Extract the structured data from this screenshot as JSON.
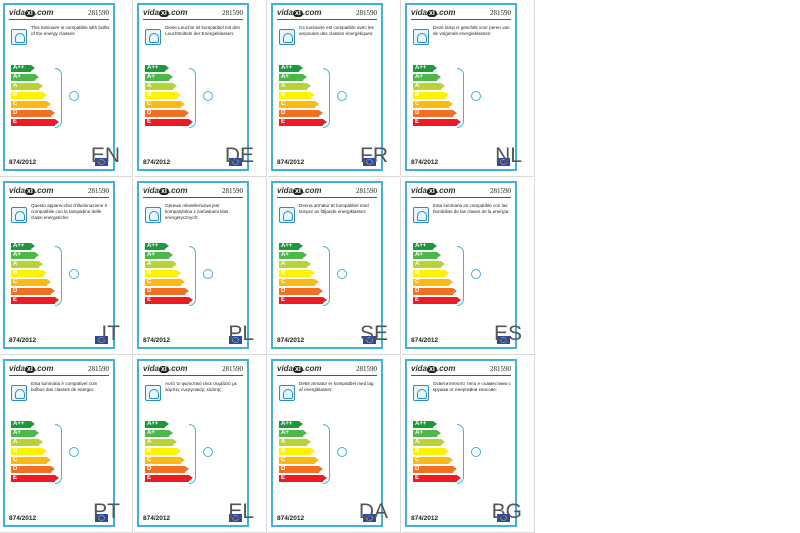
{
  "brand": {
    "logo_text": "vida",
    "logo_mark": "xl",
    "logo_suffix": ".com"
  },
  "product_code": "281590",
  "regulation": "874/2012",
  "classes": [
    {
      "label": "A++",
      "color": "#1a9a3a"
    },
    {
      "label": "A+",
      "color": "#4cb848"
    },
    {
      "label": "A",
      "color": "#b7d334"
    },
    {
      "label": "B",
      "color": "#fff200"
    },
    {
      "label": "C",
      "color": "#fdb913"
    },
    {
      "label": "D",
      "color": "#f37021"
    },
    {
      "label": "E",
      "color": "#ed1c24"
    }
  ],
  "labels": [
    {
      "lang": "EN",
      "text": "This luminaire is compatible with bulbs of the energy classes:"
    },
    {
      "lang": "DE",
      "text": "Diese Leuchte ist kompatibel mit den Leuchtmitteln der Energieklassen:"
    },
    {
      "lang": "FR",
      "text": "Ce luminaire est compatible avec les ampoules des classes énergétiques:"
    },
    {
      "lang": "NL",
      "text": "Deze lamp is geschikt voor peren van de volgende energieklassen:"
    },
    {
      "lang": "IT",
      "text": "Questo apparecchio d'illuminazione è compatibile con le lampadine delle classi energetiche:"
    },
    {
      "lang": "PL",
      "text": "Oprawa oświetleniowa jest kompatybilna z żarówkami klas energetycznych:"
    },
    {
      "lang": "SE",
      "text": "Denna armatur är kompatibel med lampor av följande energiklasser:"
    },
    {
      "lang": "ES",
      "text": "Esta luminaria es compatible con las bombillas de las clases de la energía:"
    },
    {
      "lang": "PT",
      "text": "Esta luminária é compatível com bulbos das classes de energia:"
    },
    {
      "lang": "EL",
      "text": "Αυτό το φωτιστικό είναι συμβατό με λάμπες ενεργειακής κλάσης:"
    },
    {
      "lang": "DA",
      "text": "Dette armatur er kompatibel med lag af energiklasser:"
    },
    {
      "lang": "BG",
      "text": "Осветителното тяло е съвместимо с крушки от енергийни класове:"
    }
  ]
}
